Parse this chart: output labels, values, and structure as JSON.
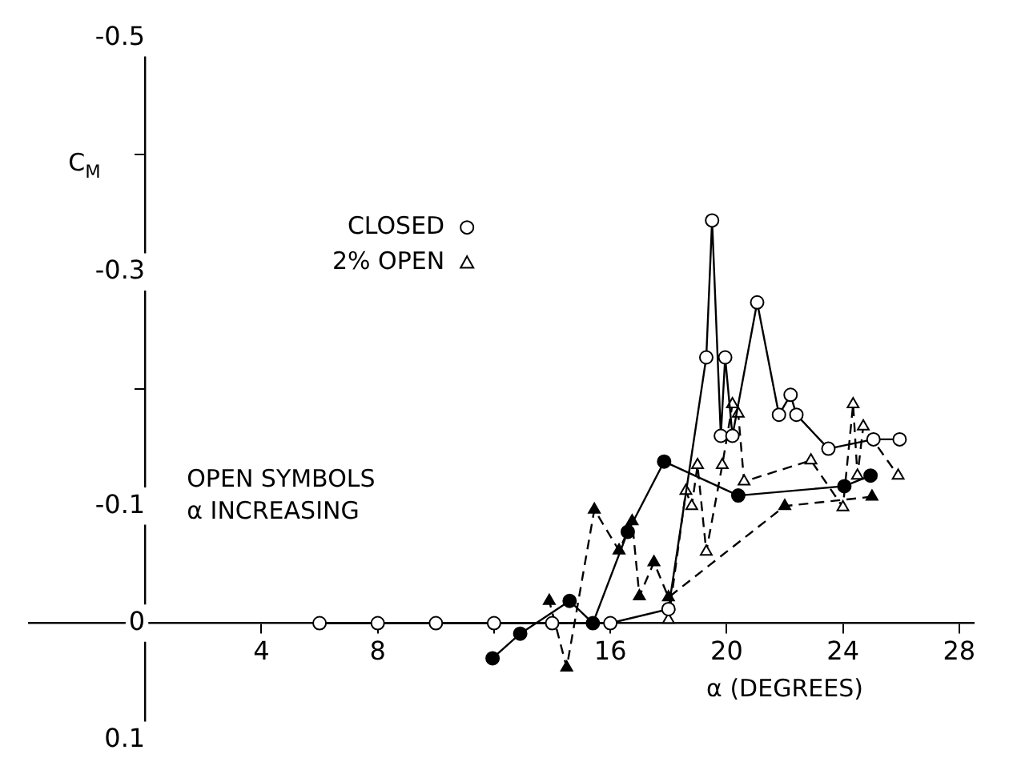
{
  "chart_data": {
    "type": "line",
    "xlabel": "α (DEGREES)",
    "ylabel": "C$_{M}$",
    "xlim": [
      -4,
      28.5
    ],
    "ylim": [
      0.1,
      -0.5
    ],
    "xticks": [
      4,
      8,
      {
        "value": 12,
        "label": null
      },
      16,
      20,
      24,
      28
    ],
    "yticks": [
      -0.5,
      {
        "value": -0.4,
        "label": null
      },
      -0.3,
      {
        "value": -0.2,
        "label": null
      },
      -0.1,
      0,
      0.1
    ],
    "grid": false,
    "legend": "top left",
    "annotations": [
      "OPEN SYMBOLS",
      "α INCREASING"
    ],
    "series": [
      {
        "name": "CLOSED",
        "color": "#000000",
        "marker": "circle",
        "line_style": "solid",
        "x": [
          6,
          8,
          10,
          12,
          14,
          16,
          18,
          19.3,
          19.5,
          19.8,
          19.95,
          20.2,
          21.05,
          21.8,
          22.2,
          22.4,
          23.5,
          25.05,
          25.95
        ],
        "values": [
          0,
          0,
          0,
          0,
          0,
          0,
          -0.012,
          -0.227,
          -0.344,
          -0.16,
          -0.227,
          -0.16,
          -0.274,
          -0.178,
          -0.195,
          -0.178,
          -0.149,
          -0.157,
          -0.157
        ]
      },
      {
        "color": "#000000",
        "marker": "circle",
        "line_style": "solid",
        "x": [
          24.95,
          24.05,
          20.4,
          17.85,
          16.6,
          15.4,
          14.6,
          12.9,
          11.95
        ],
        "values": [
          -0.126,
          -0.117,
          -0.109,
          -0.138,
          -0.078,
          0,
          -0.019,
          0.009,
          0.03
        ]
      },
      {
        "name": "2% OPEN",
        "color": "#000000",
        "marker": "triangle",
        "line_style": "dashed",
        "x": [
          18,
          18.6,
          18.8,
          19,
          19.3,
          19.85,
          20.2,
          20.4,
          20.6,
          22.9,
          24,
          24.35,
          24.5,
          24.7,
          25.9
        ],
        "values": [
          -0.003,
          -0.113,
          -0.1,
          -0.135,
          -0.061,
          -0.135,
          -0.187,
          -0.179,
          -0.121,
          -0.139,
          -0.099,
          -0.187,
          -0.126,
          -0.168,
          -0.126
        ]
      },
      {
        "color": "#000000",
        "marker": "triangle",
        "line_style": "dashed",
        "x": [
          25,
          22,
          18,
          17.5,
          17,
          16.75,
          16.3,
          15.45,
          14.5,
          13.9
        ],
        "values": [
          -0.108,
          -0.1,
          -0.022,
          -0.052,
          -0.023,
          -0.087,
          -0.062,
          -0.097,
          0.038,
          -0.019
        ]
      }
    ]
  }
}
